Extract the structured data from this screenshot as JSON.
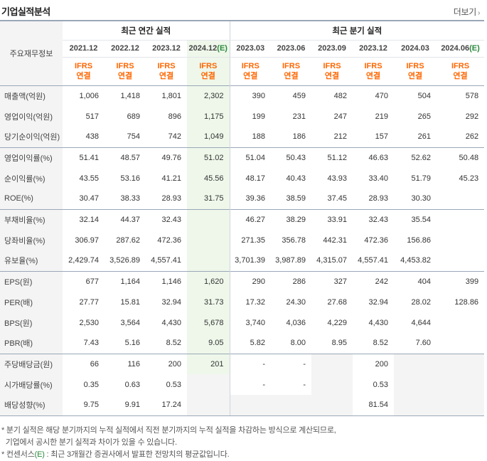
{
  "header": {
    "title": "기업실적분석",
    "more_label": "더보기",
    "more_arrow": "›"
  },
  "table": {
    "label_header": "주요재무정보",
    "annual_group": "최근 연간 실적",
    "quarter_group": "최근 분기 실적",
    "ifrs_line1": "IFRS",
    "ifrs_line2": "연결",
    "annual_periods": [
      "2021.12",
      "2022.12",
      "2023.12",
      "2024.12"
    ],
    "estimate_mark": "(E)",
    "quarter_periods": [
      "2023.03",
      "2023.06",
      "2023.09",
      "2023.12",
      "2024.03",
      "2024.06"
    ],
    "rows": [
      {
        "label": "매출액(억원)",
        "values": [
          "1,006",
          "1,418",
          "1,801",
          "2,302",
          "390",
          "459",
          "482",
          "470",
          "504",
          "578"
        ]
      },
      {
        "label": "영업이익(억원)",
        "values": [
          "517",
          "689",
          "896",
          "1,175",
          "199",
          "231",
          "247",
          "219",
          "265",
          "292"
        ]
      },
      {
        "label": "당기순이익(억원)",
        "values": [
          "438",
          "754",
          "742",
          "1,049",
          "188",
          "186",
          "212",
          "157",
          "261",
          "262"
        ]
      },
      {
        "label": "영업이익률(%)",
        "values": [
          "51.41",
          "48.57",
          "49.76",
          "51.02",
          "51.04",
          "50.43",
          "51.12",
          "46.63",
          "52.62",
          "50.48"
        ]
      },
      {
        "label": "순이익률(%)",
        "values": [
          "43.55",
          "53.16",
          "41.21",
          "45.56",
          "48.17",
          "40.43",
          "43.93",
          "33.40",
          "51.79",
          "45.23"
        ]
      },
      {
        "label": "ROE(%)",
        "values": [
          "30.47",
          "38.33",
          "28.93",
          "31.75",
          "39.36",
          "38.59",
          "37.45",
          "28.93",
          "30.30",
          ""
        ]
      },
      {
        "label": "부채비율(%)",
        "values": [
          "32.14",
          "44.37",
          "32.43",
          "",
          "46.27",
          "38.29",
          "33.91",
          "32.43",
          "35.54",
          ""
        ]
      },
      {
        "label": "당좌비율(%)",
        "values": [
          "306.97",
          "287.62",
          "472.36",
          "",
          "271.35",
          "356.78",
          "442.31",
          "472.36",
          "156.86",
          ""
        ]
      },
      {
        "label": "유보율(%)",
        "values": [
          "2,429.74",
          "3,526.89",
          "4,557.41",
          "",
          "3,701.39",
          "3,987.89",
          "4,315.07",
          "4,557.41",
          "4,453.82",
          ""
        ]
      },
      {
        "label": "EPS(원)",
        "values": [
          "677",
          "1,164",
          "1,146",
          "1,620",
          "290",
          "286",
          "327",
          "242",
          "404",
          "399"
        ]
      },
      {
        "label": "PER(배)",
        "values": [
          "27.77",
          "15.81",
          "32.94",
          "31.73",
          "17.32",
          "24.30",
          "27.68",
          "32.94",
          "28.02",
          "128.86"
        ]
      },
      {
        "label": "BPS(원)",
        "values": [
          "2,530",
          "3,564",
          "4,430",
          "5,678",
          "3,740",
          "4,036",
          "4,229",
          "4,430",
          "4,644",
          ""
        ]
      },
      {
        "label": "PBR(배)",
        "values": [
          "7.43",
          "5.16",
          "8.52",
          "9.05",
          "5.82",
          "8.00",
          "8.95",
          "8.52",
          "7.60",
          ""
        ]
      },
      {
        "label": "주당배당금(원)",
        "values": [
          "66",
          "116",
          "200",
          "201",
          "-",
          "-",
          "",
          "200",
          "",
          ""
        ]
      },
      {
        "label": "시가배당률(%)",
        "values": [
          "0.35",
          "0.63",
          "0.53",
          "",
          "-",
          "-",
          "",
          "0.53",
          "",
          ""
        ]
      },
      {
        "label": "배당성향(%)",
        "values": [
          "9.75",
          "9.91",
          "17.24",
          "",
          "",
          "",
          "",
          "81.54",
          "",
          ""
        ]
      }
    ]
  },
  "notes": {
    "line1": "* 분기 실적은 해당 분기까지의 누적 실적에서 직전 분기까지의 누적 실적을 차감하는 방식으로 계산되므로,",
    "line2": "  기업에서 공시한 분기 실적과 차이가 있을 수 있습니다.",
    "line3_prefix": "* 컨센서스",
    "line3_mark": "(E)",
    "line3_suffix": " : 최근 3개월간 증권사에서 발표한 전망치의 평균값입니다."
  },
  "colors": {
    "ifrs": "#ff6600",
    "estimate": "#2a8a3c",
    "estimate_bg": "#eef7ea",
    "label_bg": "#f4f4f4",
    "group_border": "#9aa7b8"
  }
}
